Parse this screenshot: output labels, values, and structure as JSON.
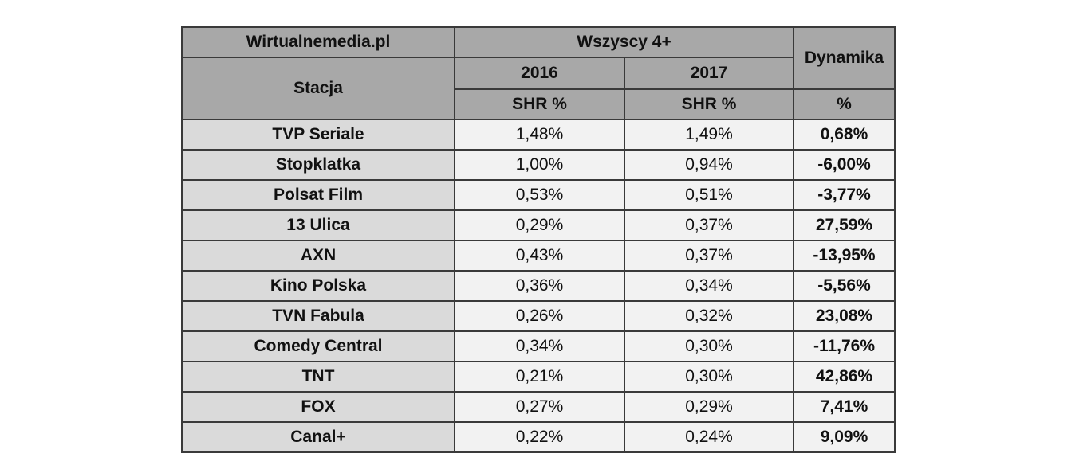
{
  "table": {
    "corner_label": "Wirtualnemedia.pl",
    "group_label": "Wszyscy 4+",
    "station_header": "Stacja",
    "dynamics_header": "Dynamika",
    "years": [
      "2016",
      "2017"
    ],
    "metric_labels": [
      "SHR %",
      "SHR %"
    ],
    "dynamics_unit": "%",
    "rows": [
      {
        "station": "TVP Seriale",
        "v2016": "1,48%",
        "v2017": "1,49%",
        "dyn": "0,68%"
      },
      {
        "station": "Stopklatka",
        "v2016": "1,00%",
        "v2017": "0,94%",
        "dyn": "-6,00%"
      },
      {
        "station": "Polsat Film",
        "v2016": "0,53%",
        "v2017": "0,51%",
        "dyn": "-3,77%"
      },
      {
        "station": "13 Ulica",
        "v2016": "0,29%",
        "v2017": "0,37%",
        "dyn": "27,59%"
      },
      {
        "station": "AXN",
        "v2016": "0,43%",
        "v2017": "0,37%",
        "dyn": "-13,95%"
      },
      {
        "station": "Kino Polska",
        "v2016": "0,36%",
        "v2017": "0,34%",
        "dyn": "-5,56%"
      },
      {
        "station": "TVN Fabula",
        "v2016": "0,26%",
        "v2017": "0,32%",
        "dyn": "23,08%"
      },
      {
        "station": "Comedy Central",
        "v2016": "0,34%",
        "v2017": "0,30%",
        "dyn": "-11,76%"
      },
      {
        "station": "TNT",
        "v2016": "0,21%",
        "v2017": "0,30%",
        "dyn": "42,86%"
      },
      {
        "station": "FOX",
        "v2016": "0,27%",
        "v2017": "0,29%",
        "dyn": "7,41%"
      },
      {
        "station": "Canal+",
        "v2016": "0,22%",
        "v2017": "0,24%",
        "dyn": "9,09%"
      }
    ]
  },
  "colors": {
    "header_bg": "#a8a8a8",
    "station_bg": "#dadada",
    "value_bg": "#f2f2f2",
    "border": "#3a3a3a"
  }
}
